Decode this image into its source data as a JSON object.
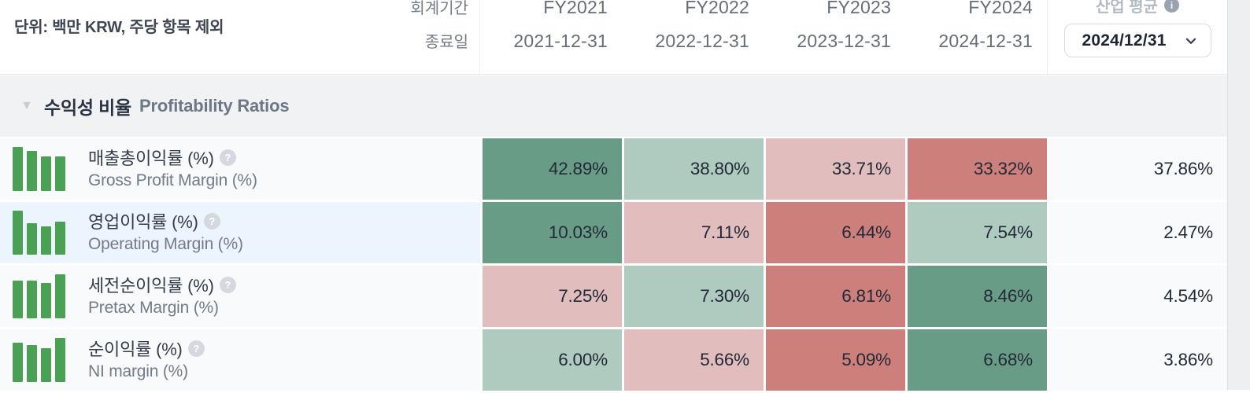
{
  "colors": {
    "accent_green_bar": "#4BA153",
    "heat_strong_green": "#699C86",
    "heat_light_green": "#AFCABE",
    "heat_light_red": "#E1BDBD",
    "heat_strong_red": "#CD7F7B",
    "section_bg": "#f1f2f4",
    "row_label_bg": "#f9fafb",
    "row_label_highlight_bg": "#ecf5fd"
  },
  "header": {
    "unit_label": "단위: 백만 KRW, 주당 항목 제외",
    "fiscal_period_label": "회계기간",
    "end_date_label": "종료일",
    "columns": [
      {
        "fy": "FY2021",
        "end_date": "2021-12-31"
      },
      {
        "fy": "FY2022",
        "end_date": "2022-12-31"
      },
      {
        "fy": "FY2023",
        "end_date": "2023-12-31"
      },
      {
        "fy": "FY2024",
        "end_date": "2024-12-31"
      }
    ],
    "industry": {
      "label": "산업 평균",
      "info_icon": "i",
      "selected_date": "2024/12/31"
    }
  },
  "section": {
    "collapse_icon": "▼",
    "title_ko": "수익성 비율",
    "title_en": "Profitability Ratios"
  },
  "help_icon_glyph": "?",
  "rows": [
    {
      "name_ko": "매출총이익률 (%)",
      "name_en": "Gross Profit Margin (%)",
      "values": [
        "42.89%",
        "38.80%",
        "33.71%",
        "33.32%"
      ],
      "industry_avg": "37.86%",
      "cell_colors": [
        "#699C86",
        "#AFCABE",
        "#E1BDBD",
        "#CD7F7B"
      ],
      "highlighted": false
    },
    {
      "name_ko": "영업이익률 (%)",
      "name_en": "Operating Margin (%)",
      "values": [
        "10.03%",
        "7.11%",
        "6.44%",
        "7.54%"
      ],
      "industry_avg": "2.47%",
      "cell_colors": [
        "#699C86",
        "#E1BDBD",
        "#CD7F7B",
        "#AFCABE"
      ],
      "highlighted": true
    },
    {
      "name_ko": "세전순이익률 (%)",
      "name_en": "Pretax Margin (%)",
      "values": [
        "7.25%",
        "7.30%",
        "6.81%",
        "8.46%"
      ],
      "industry_avg": "4.54%",
      "cell_colors": [
        "#E1BDBD",
        "#AFCABE",
        "#CD7F7B",
        "#699C86"
      ],
      "highlighted": false
    },
    {
      "name_ko": "순이익률 (%)",
      "name_en": "NI margin (%)",
      "values": [
        "6.00%",
        "5.66%",
        "5.09%",
        "6.68%"
      ],
      "industry_avg": "3.86%",
      "cell_colors": [
        "#AFCABE",
        "#E1BDBD",
        "#CD7F7B",
        "#699C86"
      ],
      "highlighted": false
    }
  ]
}
